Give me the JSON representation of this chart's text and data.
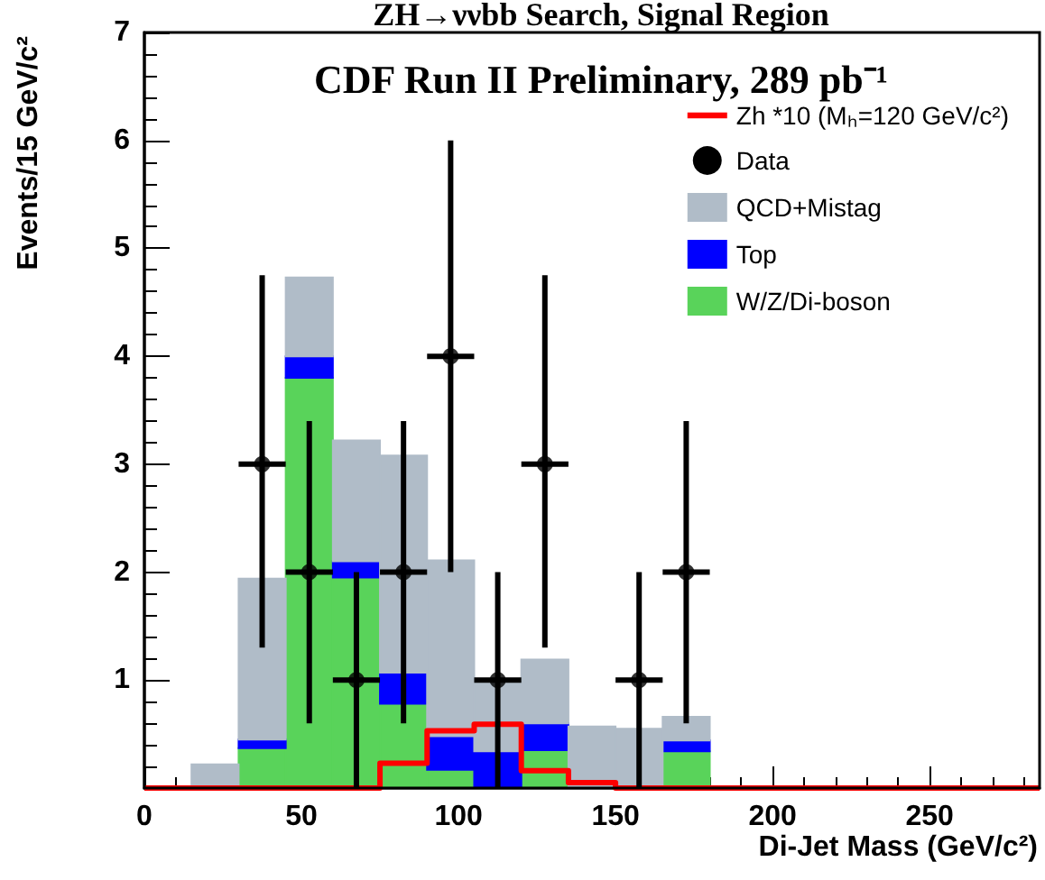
{
  "chart_data": {
    "type": "bar",
    "title": "ZH→ννbb Search, Signal Region",
    "subtitle": "CDF Run II Preliminary, 289 pb⁻¹",
    "xlabel": "Di-Jet Mass (GeV/c²)",
    "ylabel": "Events/15 GeV/c²",
    "x": [
      7.5,
      22.5,
      37.5,
      52.5,
      67.5,
      82.5,
      97.5,
      112.5,
      127.5,
      142.5,
      157.5,
      172.5,
      187.5,
      202.5,
      217.5,
      232.5,
      247.5,
      262.5,
      277.5
    ],
    "stacked": true,
    "series": [
      {
        "name": "W/Z/Di-boson",
        "color": "#59d35a",
        "values": [
          0,
          0,
          0.37,
          3.8,
          1.95,
          0.78,
          0.17,
          0,
          0.35,
          0,
          0,
          0.34,
          0,
          0,
          0,
          0,
          0,
          0,
          0
        ]
      },
      {
        "name": "Top",
        "color": "#0000ff",
        "values": [
          0,
          0,
          0.08,
          0.2,
          0.15,
          0.29,
          0.31,
          0.34,
          0.25,
          0,
          0,
          0.1,
          0,
          0,
          0,
          0,
          0,
          0,
          0
        ]
      },
      {
        "name": "QCD+Mistag",
        "color": "#b0bcc8",
        "values": [
          0,
          0.22,
          1.49,
          0.73,
          1.12,
          2.01,
          1.63,
          0.66,
          0.59,
          0.57,
          0.55,
          0.22,
          0,
          0,
          0,
          0,
          0,
          0,
          0
        ]
      },
      {
        "name": "Zh *10 (Mₕ=120 GeV/c²)",
        "type": "step",
        "color": "#ff0000",
        "x": [
          0,
          15,
          30,
          45,
          60,
          75,
          90,
          105,
          120,
          135,
          150,
          165,
          180,
          195,
          210,
          225,
          240,
          255,
          270,
          285
        ],
        "values": [
          0,
          0,
          0,
          0,
          0,
          0.23,
          0.53,
          0.59,
          0.16,
          0.05,
          0,
          0,
          0,
          0,
          0,
          0,
          0,
          0,
          0,
          0
        ]
      },
      {
        "name": "Data",
        "type": "scatter",
        "color": "#000000",
        "marker": "circle",
        "x": [
          37.5,
          52.5,
          67.5,
          82.5,
          97.5,
          112.5,
          127.5,
          157.5,
          172.5
        ],
        "values": [
          3,
          2,
          1,
          2,
          4,
          1,
          3,
          1,
          2
        ],
        "errors": [
          [
            1.3,
            4.75
          ],
          [
            0.6,
            3.4
          ],
          [
            0,
            2
          ],
          [
            0.6,
            3.4
          ],
          [
            2,
            6
          ],
          [
            0,
            2
          ],
          [
            1.3,
            4.75
          ],
          [
            0,
            2
          ],
          [
            0.6,
            3.4
          ]
        ],
        "xerrors": [
          7.5,
          7.5,
          7.5,
          7.5,
          7.5,
          7.5,
          7.5,
          7.5,
          7.5
        ]
      }
    ],
    "xlim": [
      0,
      285
    ],
    "xticks": [
      0,
      50,
      100,
      150,
      200,
      250
    ],
    "ylim": [
      0,
      7
    ],
    "yticks": [
      1,
      2,
      3,
      4,
      5,
      6,
      7
    ],
    "grid": false,
    "legend": "top right"
  }
}
